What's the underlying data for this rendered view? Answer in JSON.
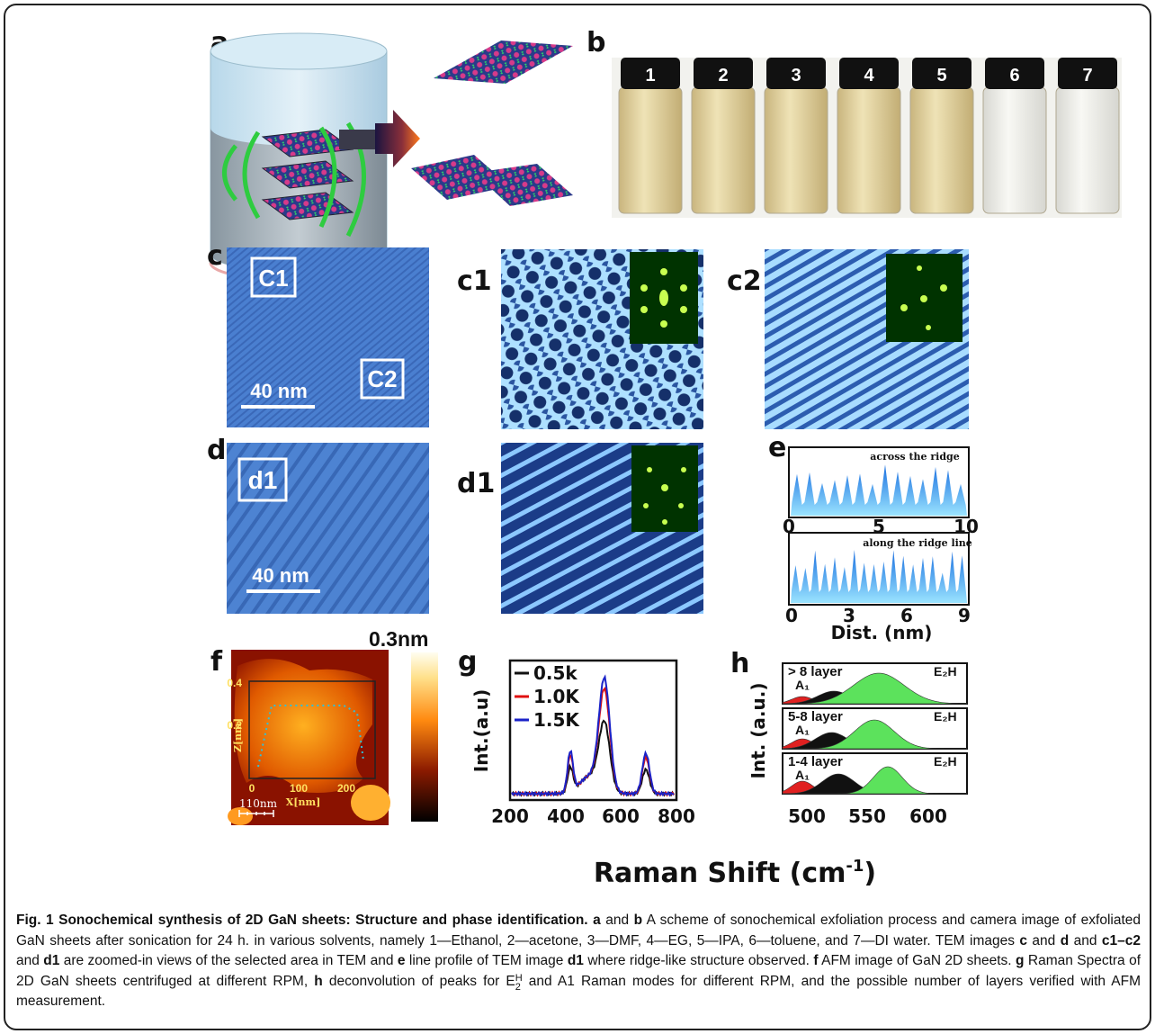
{
  "panels": {
    "a": {
      "label": "a"
    },
    "b": {
      "label": "b",
      "vials": [
        "1",
        "2",
        "3",
        "4",
        "5",
        "6",
        "7"
      ]
    },
    "c": {
      "label": "c",
      "boxes": [
        "C1",
        "C2"
      ],
      "scale": "40 nm"
    },
    "c1": {
      "label": "c1"
    },
    "c2": {
      "label": "c2"
    },
    "d": {
      "label": "d",
      "boxes": [
        "d1"
      ],
      "scale": "40 nm"
    },
    "d1": {
      "label": "d1"
    },
    "e": {
      "label": "e",
      "top_note": "across the ridge",
      "top_ticks": [
        "0",
        "5",
        "10"
      ],
      "bottom_note": "along the ridge line",
      "bottom_ticks": [
        "0",
        "3",
        "6",
        "9"
      ],
      "xlabel": "Dist. (nm)"
    },
    "f": {
      "label": "f",
      "colorbar_max": "0.3nm",
      "inset_ylabel": "Z[nm]",
      "inset_yticks": [
        "0.4",
        "0.2"
      ],
      "inset_xlabel": "X[nm]",
      "inset_xticks": [
        "0",
        "100",
        "200"
      ],
      "scale": "110nm"
    },
    "g": {
      "label": "g",
      "ylabel": "Int.(a.u)",
      "legend": [
        "0.5k",
        "1.0K",
        "1.5K"
      ],
      "xticks": [
        "200",
        "400",
        "600",
        "800"
      ]
    },
    "h": {
      "label": "h",
      "ylabel": "Int. (a.u.)",
      "layers": [
        "> 8 layer",
        "5-8 layer",
        "1-4 layer"
      ],
      "peak_a": "A₁",
      "peak_e": "E₂H",
      "xticks": [
        "500",
        "550",
        "600"
      ]
    }
  },
  "shared_xlabel": {
    "text": "Raman Shift (cm",
    "sup": "-1",
    "close": ")"
  },
  "caption": {
    "title": "Fig. 1 Sonochemical synthesis of 2D GaN sheets: Structure and phase identification.",
    "parts": [
      "a",
      " and ",
      "b",
      " A scheme of sonochemical exfoliation process and camera image of exfoliated GaN sheets after sonication for 24 h. in various solvents, namely 1—Ethanol, 2—acetone, 3—DMF, 4—EG, 5—IPA, 6—toluene, and 7—DI water. TEM images ",
      "c",
      " and ",
      "d",
      " and ",
      "c1–c2",
      " and ",
      "d1",
      " are zoomed-in views of the selected area in TEM and ",
      "e",
      " line profile of TEM image ",
      "d1",
      " where ridge-like structure observed. ",
      "f",
      " AFM image of GaN 2D sheets. ",
      "g",
      " Raman Spectra of 2D GaN sheets centrifuged at different RPM, ",
      "h",
      " deconvolution of peaks for E",
      "H",
      "2",
      " and A1 Raman modes for different RPM, and the possible number of layers verified with AFM measurement."
    ]
  }
}
